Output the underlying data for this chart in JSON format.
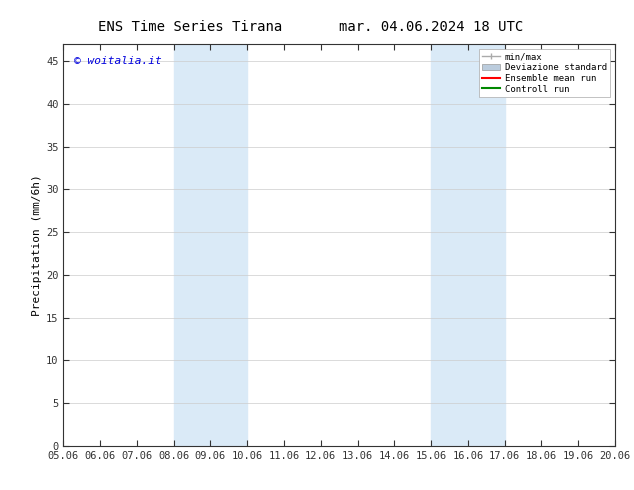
{
  "title_left": "ENS Time Series Tirana",
  "title_right": "mar. 04.06.2024 18 UTC",
  "ylabel": "Precipitation (mm/6h)",
  "watermark": "© woitalia.it",
  "watermark_color": "#0000dd",
  "x_labels": [
    "05.06",
    "06.06",
    "07.06",
    "08.06",
    "09.06",
    "10.06",
    "11.06",
    "12.06",
    "13.06",
    "14.06",
    "15.06",
    "16.06",
    "17.06",
    "18.06",
    "19.06",
    "20.06"
  ],
  "x_ticks": [
    0,
    1,
    2,
    3,
    4,
    5,
    6,
    7,
    8,
    9,
    10,
    11,
    12,
    13,
    14,
    15
  ],
  "ylim": [
    0,
    47
  ],
  "yticks": [
    0,
    5,
    10,
    15,
    20,
    25,
    30,
    35,
    40,
    45
  ],
  "shaded_regions": [
    {
      "xmin": 3,
      "xmax": 5,
      "color": "#daeaf7"
    },
    {
      "xmin": 10,
      "xmax": 12,
      "color": "#daeaf7"
    }
  ],
  "legend_labels": [
    "min/max",
    "Deviazione standard",
    "Ensemble mean run",
    "Controll run"
  ],
  "legend_line_colors": [
    "#aaaaaa",
    "#bbccdd",
    "#ff0000",
    "#008800"
  ],
  "background_color": "#ffffff",
  "plot_bg_color": "#ffffff",
  "title_fontsize": 10,
  "axis_fontsize": 7.5,
  "ylabel_fontsize": 8
}
